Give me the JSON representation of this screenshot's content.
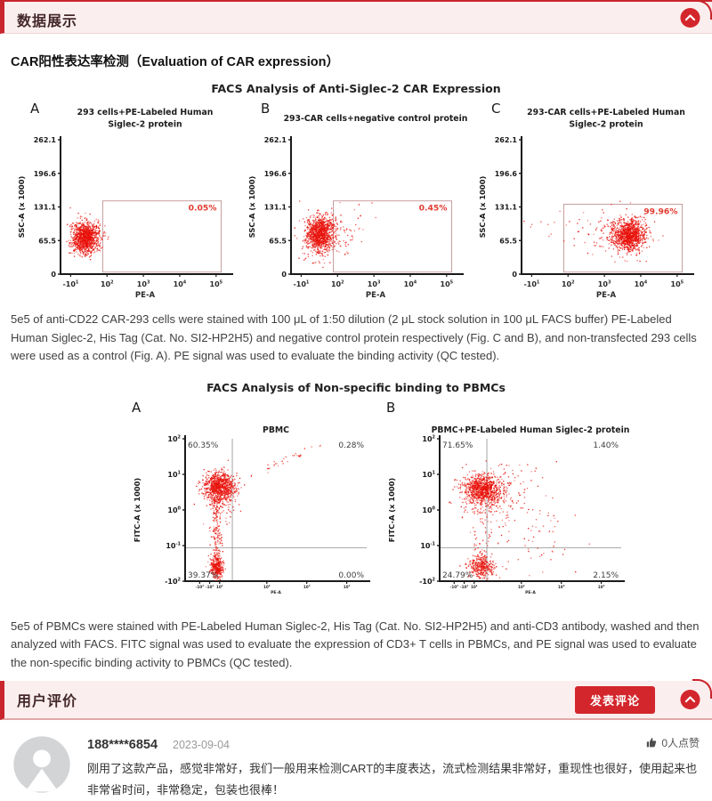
{
  "page": {
    "section_data_display": {
      "title": "数据展示"
    },
    "car_section_title": "CAR阳性表达率检测（Evaluation of CAR expression）",
    "figure1_title": "FACS Analysis of Anti-Siglec-2 CAR Expression",
    "para1": "5e5 of anti-CD22 CAR-293 cells were stained with 100 μL of 1:50 dilution (2 μL stock solution in 100 μL FACS buffer) PE-Labeled Human Siglec-2, His Tag (Cat. No. SI2-HP2H5) and negative control protein respectively (Fig. C and B), and non-transfected 293 cells were used as a control (Fig. A). PE signal was used to evaluate the binding activity (QC tested).",
    "figure2_title": "FACS Analysis of Non-specific binding to PBMCs",
    "para2": "5e5 of PBMCs were stained with PE-Labeled Human Siglec-2, His Tag (Cat. No. SI2-HP2H5) and anti-CD3 antibody, washed and then analyzed with FACS. FITC signal was used to evaluate the expression of CD3+ T cells in PBMCs, and PE signal was used to evaluate the non-specific binding activity to PBMCs (QC tested).",
    "section_reviews": {
      "title": "用户评价",
      "post_button": "发表评论"
    },
    "review": {
      "username": "188****6854",
      "date": "2023-09-04",
      "likes": "0人点赞",
      "text": "刚用了这款产品，感觉非常好，我们一般用来检测CART的丰度表达，流式检测结果非常好，重现性也很好，使用起来也非常省时间，非常稳定，包装也很棒！"
    }
  },
  "colors": {
    "accent": "#c9252c",
    "strip_bg": "#fbeeee",
    "dot_red": "#e8120b",
    "gate_stroke": "#c79f9f",
    "percent_red": "#e23b30"
  },
  "chart_data": {
    "plots": [
      {
        "type": "scatter",
        "label": "A",
        "title_lines": [
          "293 cells+PE-Labeled Human",
          "Siglec-2 protein"
        ],
        "x_label": "PE-A",
        "y_label": "SSC-A (x 1000)",
        "y_ticks": [
          "0",
          "65.5",
          "131.1",
          "196.6",
          "262.1"
        ],
        "x_ticks": [
          {
            "f": 0.06,
            "l": "-10^1"
          },
          {
            "f": 0.275,
            "l": "10^2"
          },
          {
            "f": 0.49,
            "l": "10^3"
          },
          {
            "f": 0.705,
            "l": "10^4"
          },
          {
            "f": 0.92,
            "l": "10^5"
          }
        ],
        "gate": {
          "x0": 0.25,
          "x1": 0.95,
          "y0": 0.015,
          "y1": 0.545,
          "percent": "0.05%"
        },
        "clusters": [
          {
            "x": 0.145,
            "y": 0.27,
            "sx": 0.033,
            "sy": 0.05,
            "n": 900
          },
          {
            "x": 0.145,
            "y": 0.27,
            "sx": 0.05,
            "sy": 0.075,
            "n": 260
          },
          {
            "x": 0.23,
            "y": 0.28,
            "sx": 0.025,
            "sy": 0.05,
            "n": 25
          }
        ]
      },
      {
        "type": "scatter",
        "label": "B",
        "title_lines": [
          "293-CAR cells+negative control protein"
        ],
        "x_label": "PE-A",
        "y_label": "SSC-A (x 1000)",
        "y_ticks": [
          "0",
          "65.5",
          "131.1",
          "196.6",
          "262.1"
        ],
        "x_ticks": [
          {
            "f": 0.06,
            "l": "-10^1"
          },
          {
            "f": 0.275,
            "l": "10^2"
          },
          {
            "f": 0.49,
            "l": "10^3"
          },
          {
            "f": 0.705,
            "l": "10^4"
          },
          {
            "f": 0.92,
            "l": "10^5"
          }
        ],
        "gate": {
          "x0": 0.25,
          "x1": 0.95,
          "y0": 0.015,
          "y1": 0.545,
          "percent": "0.45%"
        },
        "clusters": [
          {
            "x": 0.17,
            "y": 0.3,
            "sx": 0.038,
            "sy": 0.058,
            "n": 900
          },
          {
            "x": 0.17,
            "y": 0.28,
            "sx": 0.055,
            "sy": 0.085,
            "n": 260
          },
          {
            "x": 0.31,
            "y": 0.3,
            "sx": 0.07,
            "sy": 0.09,
            "n": 70
          }
        ]
      },
      {
        "type": "scatter",
        "label": "C",
        "title_lines": [
          "293-CAR cells+PE-Labeled Human",
          "Siglec-2 protein"
        ],
        "x_label": "PE-A",
        "y_label": "SSC-A (x 1000)",
        "y_ticks": [
          "0",
          "65.5",
          "131.1",
          "196.6",
          "262.1"
        ],
        "x_ticks": [
          {
            "f": 0.06,
            "l": "-10^1"
          },
          {
            "f": 0.275,
            "l": "10^2"
          },
          {
            "f": 0.49,
            "l": "10^3"
          },
          {
            "f": 0.705,
            "l": "10^4"
          },
          {
            "f": 0.92,
            "l": "10^5"
          }
        ],
        "gate": {
          "x0": 0.25,
          "x1": 0.95,
          "y0": 0.015,
          "y1": 0.52,
          "percent": "99.96%"
        },
        "clusters": [
          {
            "x": 0.64,
            "y": 0.29,
            "sx": 0.045,
            "sy": 0.052,
            "n": 900
          },
          {
            "x": 0.62,
            "y": 0.3,
            "sx": 0.07,
            "sy": 0.08,
            "n": 260
          },
          {
            "x": 0.46,
            "y": 0.3,
            "sx": 0.1,
            "sy": 0.09,
            "n": 55
          },
          {
            "x": 0.1,
            "y": 0.3,
            "sx": 0.05,
            "sy": 0.08,
            "n": 8
          }
        ]
      },
      {
        "type": "scatter",
        "label": "A",
        "title_lines": [
          "PBMC"
        ],
        "x_label": "PE-A",
        "y_label": "FITC-A (x 1000)",
        "y_ticks": [
          "-10^2",
          "10^-1",
          "10^0",
          "10^1",
          "10^2"
        ],
        "x_ticks": [
          {
            "f": 0.08,
            "l": "-10^2"
          },
          {
            "f": 0.135,
            "l": "-10^1"
          },
          {
            "f": 0.19,
            "l": "10^1"
          },
          {
            "f": 0.45,
            "l": "10^2"
          },
          {
            "f": 0.67,
            "l": "10^3"
          },
          {
            "f": 0.89,
            "l": "10^4"
          }
        ],
        "quadrants": {
          "vline": 0.26,
          "hline": 0.235,
          "tl": "60.35%",
          "tr": "0.28%",
          "bl": "39.37%",
          "br": "0.00%"
        },
        "clusters": [
          {
            "x": 0.19,
            "y": 0.67,
            "sx": 0.04,
            "sy": 0.045,
            "n": 800
          },
          {
            "x": 0.19,
            "y": 0.6,
            "sx": 0.05,
            "sy": 0.09,
            "n": 160
          },
          {
            "x": 0.175,
            "y": 0.1,
            "sx": 0.018,
            "sy": 0.04,
            "n": 300
          },
          {
            "x": 0.175,
            "y": 0.05,
            "dx": 0,
            "dy": 0.55,
            "sx": 0.015,
            "sy": 0.02,
            "n": 220
          },
          {
            "x": 0.36,
            "y": 0.74,
            "dx": 0.42,
            "dy": 0.24,
            "sx": 0.012,
            "sy": 0.012,
            "n": 30
          }
        ]
      },
      {
        "type": "scatter",
        "label": "B",
        "title_lines": [
          "PBMC+PE-Labeled Human Siglec-2 protein"
        ],
        "x_label": "PE-A",
        "y_label": "FITC-A (x 1000)",
        "y_ticks": [
          "-10^2",
          "10^-1",
          "10^0",
          "10^1",
          "10^2"
        ],
        "x_ticks": [
          {
            "f": 0.08,
            "l": "-10^2"
          },
          {
            "f": 0.135,
            "l": "-10^1"
          },
          {
            "f": 0.19,
            "l": "10^1"
          },
          {
            "f": 0.45,
            "l": "10^2"
          },
          {
            "f": 0.67,
            "l": "10^3"
          },
          {
            "f": 0.89,
            "l": "10^4"
          }
        ],
        "quadrants": {
          "vline": 0.26,
          "hline": 0.235,
          "tl": "71.65%",
          "tr": "1.40%",
          "bl": "24.79%",
          "br": "2.15%"
        },
        "clusters": [
          {
            "x": 0.235,
            "y": 0.645,
            "sx": 0.05,
            "sy": 0.05,
            "n": 850
          },
          {
            "x": 0.25,
            "y": 0.6,
            "sx": 0.08,
            "sy": 0.1,
            "n": 200
          },
          {
            "x": 0.23,
            "y": 0.1,
            "sx": 0.035,
            "sy": 0.04,
            "n": 320
          },
          {
            "x": 0.24,
            "y": 0.05,
            "dx": 0,
            "dy": 0.5,
            "sx": 0.03,
            "sy": 0.02,
            "n": 60
          },
          {
            "x": 0.46,
            "y": 0.35,
            "sx": 0.13,
            "sy": 0.17,
            "n": 90
          },
          {
            "x": 0.35,
            "y": 0.68,
            "sx": 0.1,
            "sy": 0.07,
            "n": 55
          }
        ]
      }
    ]
  }
}
